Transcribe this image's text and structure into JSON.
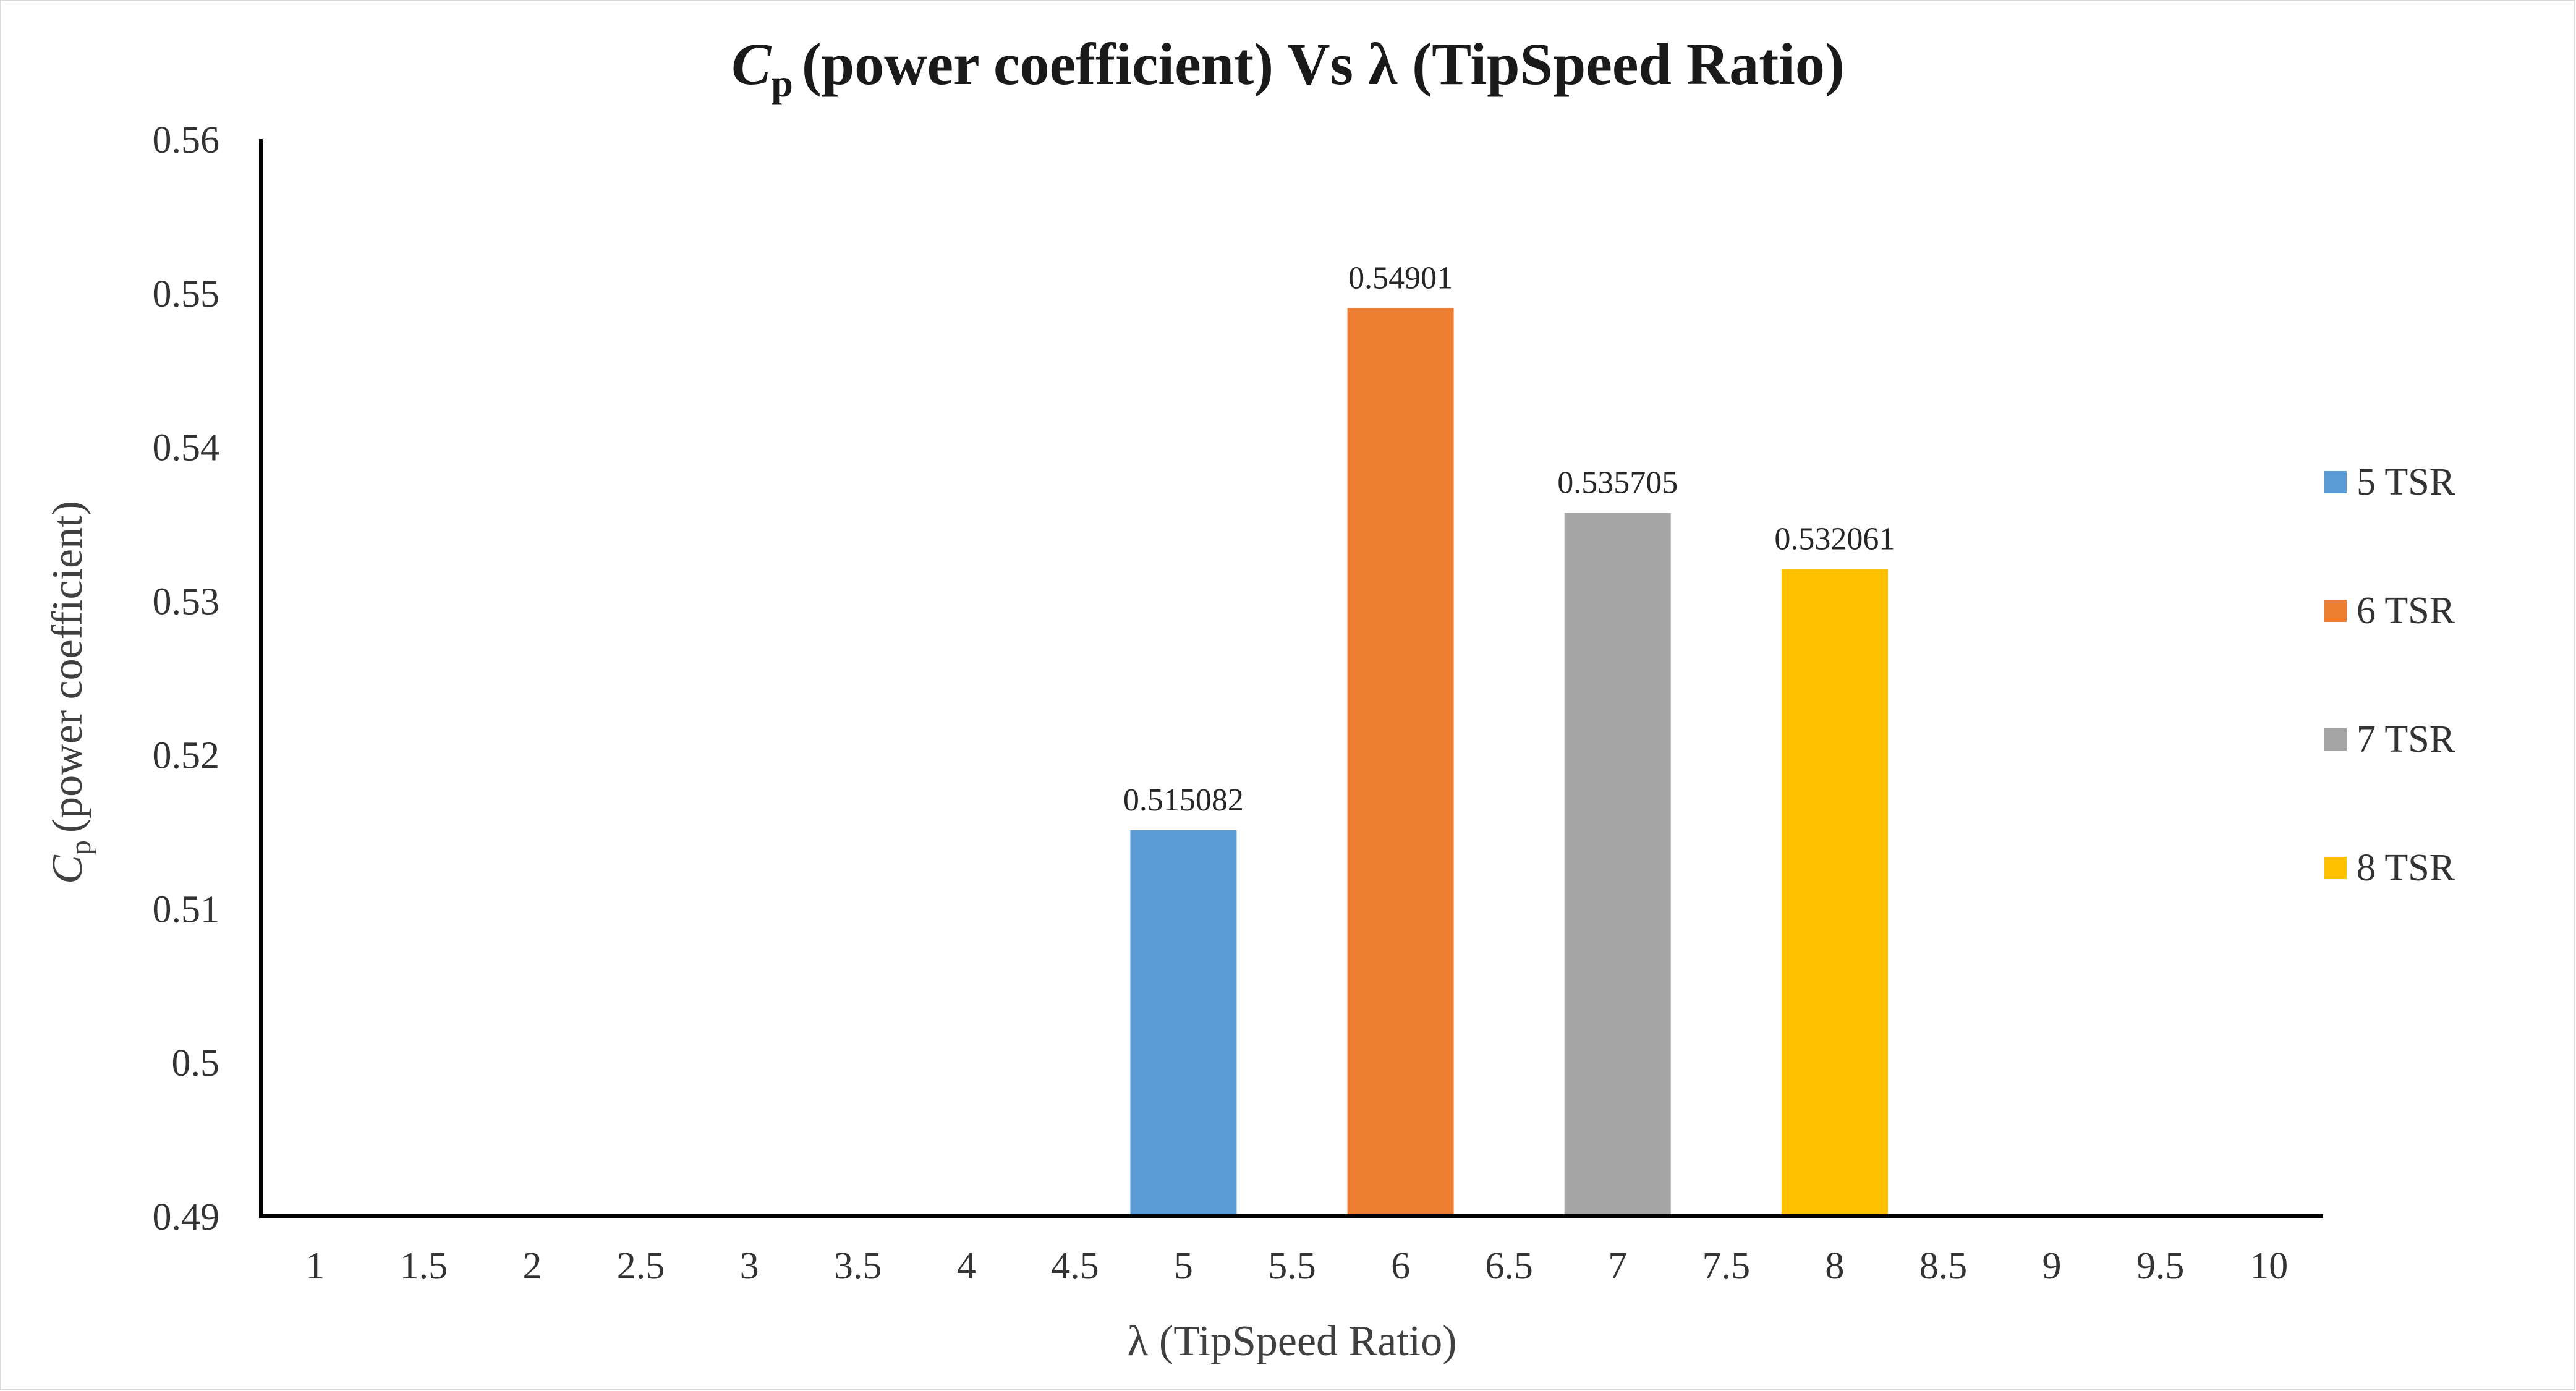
{
  "chart_data": {
    "type": "bar",
    "title": {
      "symbol": "C",
      "subscript": "p",
      "text": "(power coefficient) Vs λ (TipSpeed Ratio)"
    },
    "ylabel": {
      "symbol": "C",
      "subscript": "p",
      "text": "(power coefficient)"
    },
    "xlabel": "λ (TipSpeed Ratio)",
    "categories": [
      "1",
      "1.5",
      "2",
      "2.5",
      "3",
      "3.5",
      "4",
      "4.5",
      "5",
      "5.5",
      "6",
      "6.5",
      "7",
      "7.5",
      "8",
      "8.5",
      "9",
      "9.5",
      "10"
    ],
    "yticks": [
      "0.49",
      "0.5",
      "0.51",
      "0.52",
      "0.53",
      "0.54",
      "0.55",
      "0.56"
    ],
    "ylim": [
      0.49,
      0.56
    ],
    "series": [
      {
        "name": "5 TSR",
        "x": "5",
        "value": 0.515082,
        "label": "0.515082",
        "color": "#5b9bd5"
      },
      {
        "name": "6 TSR",
        "x": "6",
        "value": 0.54901,
        "label": "0.54901",
        "color": "#ed7d31"
      },
      {
        "name": "7 TSR",
        "x": "7",
        "value": 0.535705,
        "label": "0.535705",
        "color": "#a5a5a5"
      },
      {
        "name": "8 TSR",
        "x": "8",
        "value": 0.532061,
        "label": "0.532061",
        "color": "#ffc000"
      }
    ],
    "grid": false,
    "legend": "right"
  }
}
